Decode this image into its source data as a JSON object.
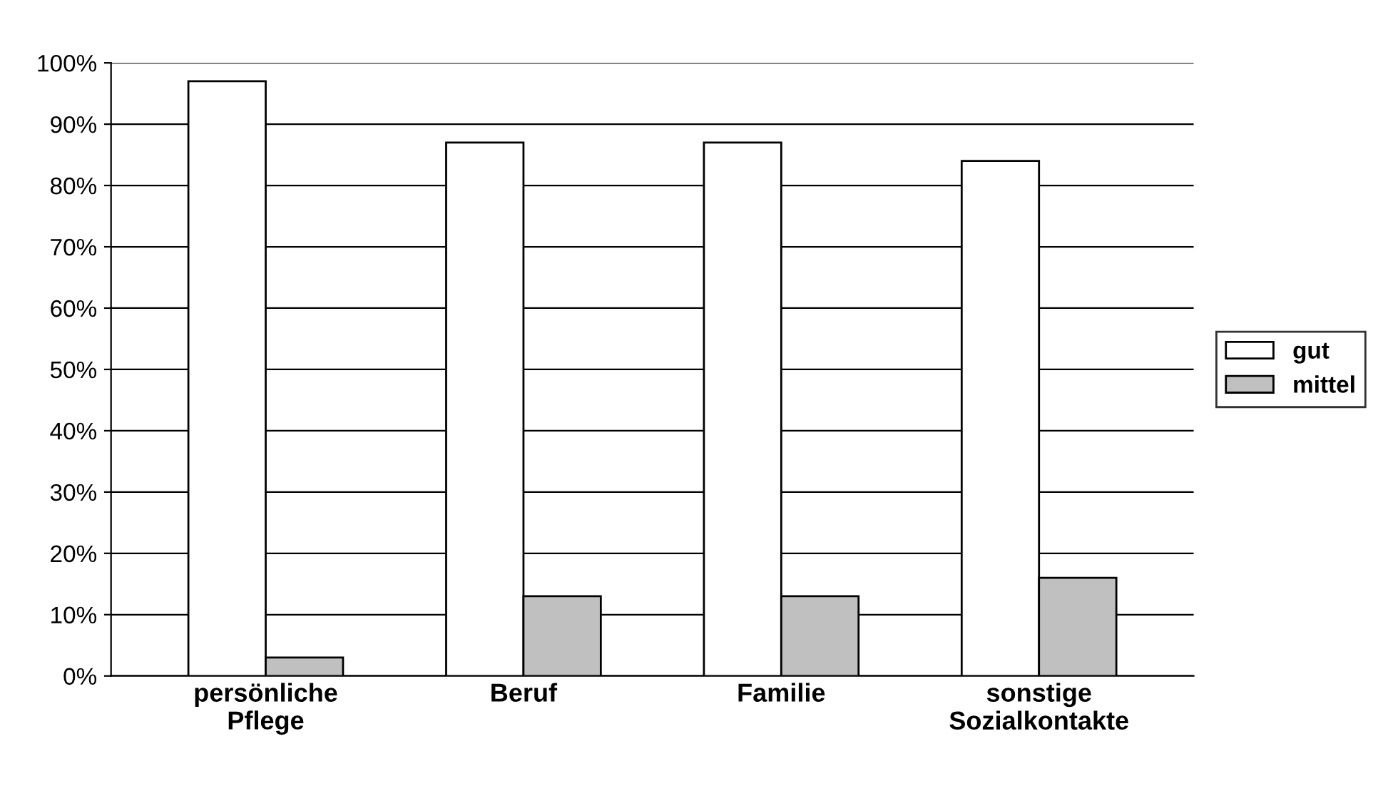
{
  "chart_data": {
    "type": "bar",
    "categories": [
      "persönliche\nPflege",
      "Beruf",
      "Familie",
      "sonstige\nSozialkontakte"
    ],
    "series": [
      {
        "name": "gut",
        "color": "#ffffff",
        "values": [
          97,
          87,
          87,
          84
        ]
      },
      {
        "name": "mittel",
        "color": "#c0c0c0",
        "values": [
          3,
          13,
          13,
          16
        ]
      }
    ],
    "ylim": [
      0,
      100
    ],
    "yticks": [
      {
        "value": 0,
        "label": "0%"
      },
      {
        "value": 10,
        "label": "10%"
      },
      {
        "value": 20,
        "label": "20%"
      },
      {
        "value": 30,
        "label": "30%"
      },
      {
        "value": 40,
        "label": "40%"
      },
      {
        "value": 50,
        "label": "50%"
      },
      {
        "value": 60,
        "label": "60%"
      },
      {
        "value": 70,
        "label": "70%"
      },
      {
        "value": 80,
        "label": "80%"
      },
      {
        "value": 90,
        "label": "90%"
      },
      {
        "value": 100,
        "label": "100%"
      }
    ],
    "grid": "y",
    "legend": "right"
  }
}
